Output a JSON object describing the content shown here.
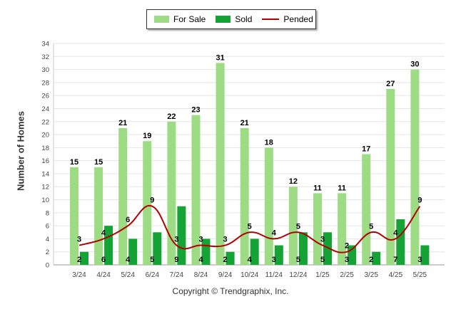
{
  "legend": {
    "for_sale": "For Sale",
    "sold": "Sold",
    "pended": "Pended"
  },
  "footer": {
    "copyright": "Copyright © Trendgraphix, Inc."
  },
  "colors": {
    "for_sale": "#9ddc84",
    "sold": "#16a336",
    "pended": "#b30000"
  },
  "chart_data": {
    "type": "bar",
    "categories": [
      "3/24",
      "4/24",
      "5/24",
      "6/24",
      "7/24",
      "8/24",
      "9/24",
      "10/24",
      "11/24",
      "12/24",
      "1/25",
      "2/25",
      "3/25",
      "4/25",
      "5/25"
    ],
    "series": [
      {
        "name": "For Sale",
        "type": "bar",
        "values": [
          15,
          15,
          21,
          19,
          22,
          23,
          31,
          21,
          18,
          12,
          11,
          11,
          17,
          27,
          30
        ]
      },
      {
        "name": "Sold",
        "type": "bar",
        "values": [
          2,
          6,
          4,
          5,
          9,
          4,
          2,
          4,
          3,
          5,
          5,
          3,
          2,
          7,
          3
        ]
      },
      {
        "name": "Pended",
        "type": "line",
        "values": [
          3,
          4,
          6,
          9,
          3,
          3,
          3,
          5,
          4,
          5,
          3,
          2,
          5,
          4,
          9
        ]
      }
    ],
    "ylabel": "Number of Homes",
    "xlabel": "",
    "ylim": [
      0,
      34
    ],
    "yticks": [
      0,
      2,
      4,
      6,
      8,
      10,
      12,
      14,
      16,
      18,
      20,
      22,
      24,
      26,
      28,
      30,
      32,
      34
    ],
    "grid": true,
    "legend_position": "top-center"
  }
}
